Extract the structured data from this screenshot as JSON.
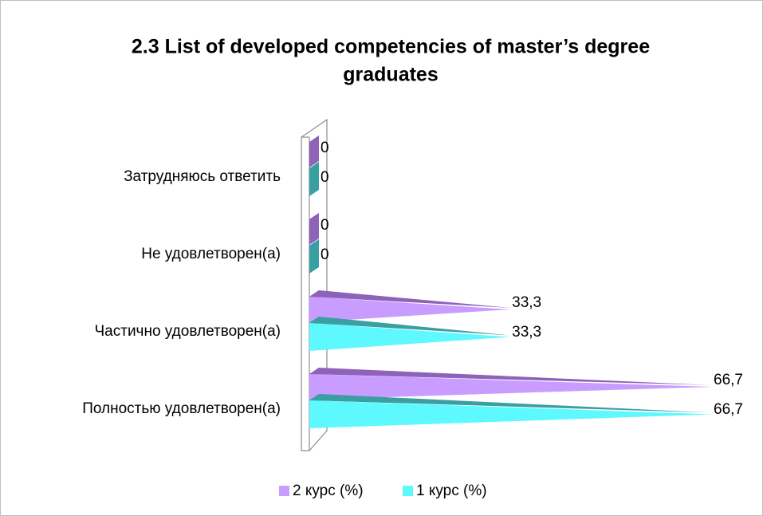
{
  "chart_data": {
    "type": "pyramid-bar",
    "title": [
      "2.3 List of developed competencies of master’s degree",
      "graduates"
    ],
    "categories": [
      "Затрудняюсь ответить",
      "Не удовлетворен(а)",
      "Частично удовлетворен(а)",
      "Полностью удовлетворен(а)"
    ],
    "series": [
      {
        "name": "2 курс (%)",
        "color": "#c99cff",
        "depth_color": "#8e62b8",
        "values": [
          0,
          0,
          33.3,
          66.7
        ],
        "value_labels": [
          "0",
          "0",
          "33,3",
          "66,7"
        ]
      },
      {
        "name": "1 курс (%)",
        "color": "#5ef8ff",
        "depth_color": "#3a9fa3",
        "values": [
          0,
          0,
          33.3,
          66.7
        ],
        "value_labels": [
          "0",
          "0",
          "33,3",
          "66,7"
        ]
      }
    ],
    "xlim": [
      0,
      70
    ],
    "legend": "bottom"
  }
}
